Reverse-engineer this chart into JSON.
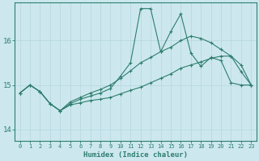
{
  "xlabel": "Humidex (Indice chaleur)",
  "ylabel": "",
  "background_color": "#cce8ee",
  "line_color": "#2e7d6e",
  "grid_color_major": "#b8d8e0",
  "grid_color_minor": "#d4ecf0",
  "xlim": [
    -0.5,
    23.5
  ],
  "ylim": [
    13.75,
    16.85
  ],
  "yticks": [
    14,
    15,
    16
  ],
  "xticks": [
    0,
    1,
    2,
    3,
    4,
    5,
    6,
    7,
    8,
    9,
    10,
    11,
    12,
    13,
    14,
    15,
    16,
    17,
    18,
    19,
    20,
    21,
    22,
    23
  ],
  "series": [
    [
      14.82,
      15.0,
      14.85,
      14.58,
      14.42,
      14.58,
      14.68,
      14.75,
      14.82,
      14.92,
      15.2,
      15.5,
      16.72,
      16.72,
      15.75,
      16.2,
      16.6,
      15.72,
      15.42,
      15.62,
      15.55,
      15.05,
      15.0,
      15.0
    ],
    [
      14.82,
      15.0,
      14.85,
      14.58,
      14.42,
      14.62,
      14.72,
      14.82,
      14.9,
      15.0,
      15.15,
      15.32,
      15.5,
      15.62,
      15.75,
      15.85,
      16.0,
      16.1,
      16.05,
      15.95,
      15.8,
      15.65,
      15.3,
      15.0
    ],
    [
      14.82,
      15.0,
      14.85,
      14.58,
      14.42,
      14.55,
      14.6,
      14.65,
      14.68,
      14.72,
      14.8,
      14.88,
      14.95,
      15.05,
      15.15,
      15.25,
      15.38,
      15.45,
      15.52,
      15.6,
      15.65,
      15.65,
      15.45,
      15.0
    ]
  ]
}
